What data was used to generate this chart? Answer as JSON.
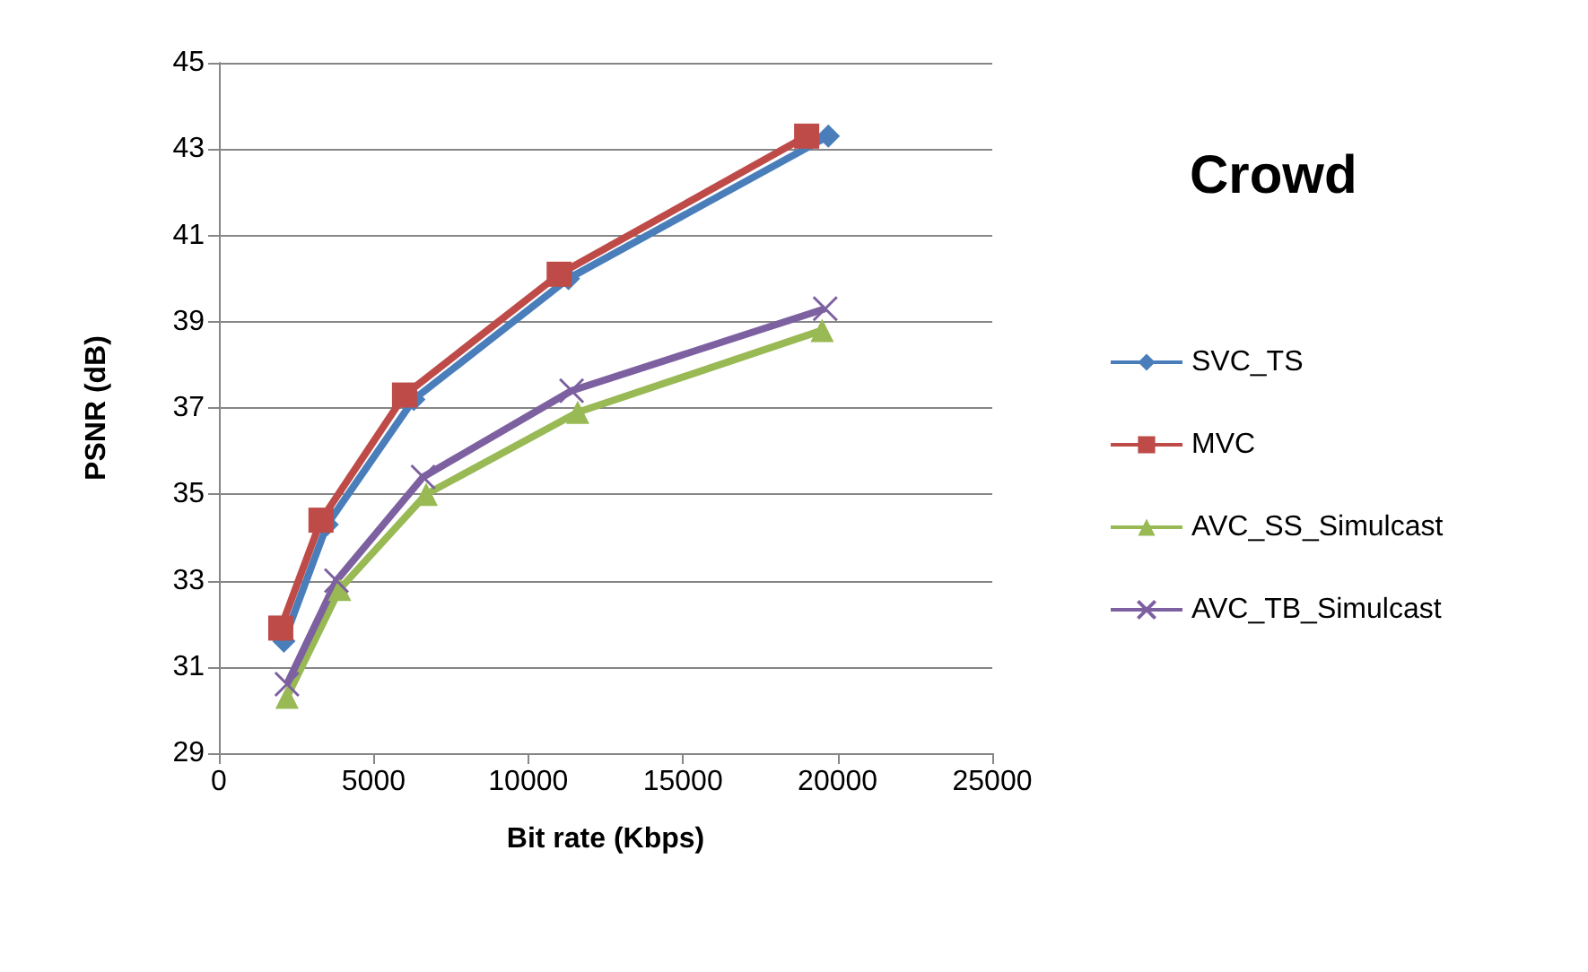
{
  "chart_data": {
    "type": "line",
    "title": "Crowd",
    "xlabel": "Bit rate (Kbps)",
    "ylabel": "PSNR (dB)",
    "xlim": [
      0,
      25000
    ],
    "xticks": [
      0,
      5000,
      10000,
      15000,
      20000,
      25000
    ],
    "ylim": [
      29,
      45
    ],
    "yticks": [
      29,
      31,
      33,
      35,
      37,
      39,
      41,
      43,
      45
    ],
    "grid": "y",
    "legend": "right",
    "series": [
      {
        "name": "SVC_TS",
        "color": "#4a7ebb",
        "marker": "diamond",
        "x": [
          2100,
          3500,
          6300,
          11300,
          19700
        ],
        "values": [
          31.6,
          34.3,
          37.2,
          40.0,
          43.3
        ]
      },
      {
        "name": "MVC",
        "color": "#be4b48",
        "marker": "square",
        "x": [
          2000,
          3300,
          6000,
          11000,
          19000
        ],
        "values": [
          31.9,
          34.4,
          37.3,
          40.1,
          43.3
        ]
      },
      {
        "name": "AVC_SS_Simulcast",
        "color": "#98b954",
        "marker": "triangle",
        "x": [
          2200,
          3900,
          6700,
          11600,
          19500
        ],
        "values": [
          30.3,
          32.8,
          35.0,
          36.9,
          38.8
        ]
      },
      {
        "name": "AVC_TB_Simulcast",
        "color": "#7d60a0",
        "marker": "cross",
        "x": [
          2200,
          3800,
          6600,
          11400,
          19600
        ],
        "values": [
          30.6,
          33.0,
          35.4,
          37.4,
          39.3
        ]
      }
    ]
  }
}
